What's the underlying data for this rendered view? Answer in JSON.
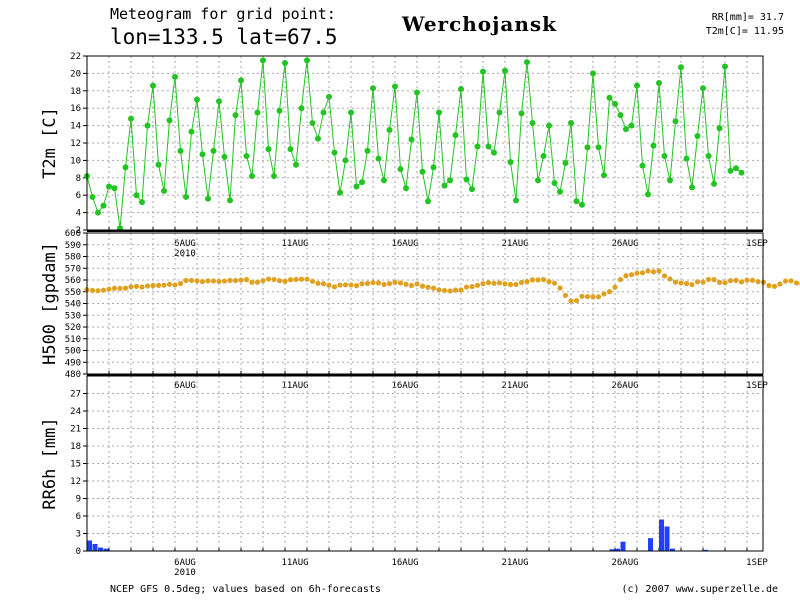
{
  "header": {
    "line1": "Meteogram for grid point:",
    "line2": "lon=133.5  lat=67.5",
    "station": "Werchojansk",
    "stat_rr": "RR[mm]= 31.7",
    "stat_t2m": "T2m[C]= 11.95"
  },
  "footer": {
    "source": "NCEP GFS 0.5deg; values based on 6h-forecasts",
    "copyright": "(c) 2007 www.superzelle.de"
  },
  "colors": {
    "t2m": "#22c422",
    "h500": "#e0a020",
    "rr6h": "#2040ff",
    "grid": "#aaaaaa"
  },
  "chart_data": [
    {
      "type": "line",
      "ylabel": "T2m [C]",
      "x_unit": "6h steps from 1 Aug 2010 00UTC",
      "ylim": [
        2,
        22
      ],
      "yticks": [
        2,
        4,
        6,
        8,
        10,
        12,
        14,
        16,
        18,
        20,
        22
      ],
      "grid": true,
      "date_ticks": [
        "6AUG",
        "11AUG",
        "16AUG",
        "21AUG",
        "26AUG",
        "1SEP"
      ],
      "year_label": "2010",
      "values": [
        8.2,
        5.8,
        4.0,
        4.8,
        7.0,
        6.8,
        2.2,
        9.2,
        14.8,
        6.0,
        5.2,
        14.0,
        18.6,
        9.5,
        6.5,
        14.6,
        19.6,
        11.1,
        5.8,
        13.3,
        17.0,
        10.7,
        5.6,
        11.1,
        16.8,
        10.4,
        5.4,
        15.2,
        19.2,
        10.5,
        8.2,
        15.5,
        21.5,
        11.3,
        8.2,
        15.7,
        21.2,
        11.3,
        9.5,
        16.0,
        21.5,
        14.3,
        12.5,
        15.5,
        17.3,
        10.9,
        6.3,
        10.0,
        15.5,
        7.0,
        7.5,
        11.1,
        18.3,
        10.2,
        7.7,
        13.5,
        18.5,
        9.0,
        6.8,
        12.4,
        17.8,
        8.7,
        5.3,
        9.2,
        15.5,
        7.1,
        7.7,
        12.9,
        18.2,
        7.8,
        6.7,
        11.6,
        20.2,
        11.6,
        10.9,
        15.5,
        20.3,
        9.8,
        5.4,
        15.4,
        21.3,
        14.3,
        7.7,
        10.5,
        14.0,
        7.4,
        6.4,
        9.7,
        14.3,
        5.3,
        4.9,
        11.5,
        20.0,
        11.5,
        8.3,
        17.2,
        16.5,
        15.2,
        13.6,
        14.0,
        18.6,
        9.4,
        6.1,
        11.7,
        18.9,
        10.5,
        7.7,
        14.5,
        20.7,
        10.2,
        6.9,
        12.8,
        18.3,
        10.5,
        7.3,
        13.7,
        20.8,
        8.8,
        9.1,
        8.6
      ]
    },
    {
      "type": "line",
      "ylabel": "H500 [gpdam]",
      "ylim": [
        480,
        600
      ],
      "yticks": [
        480,
        490,
        500,
        510,
        520,
        530,
        540,
        550,
        560,
        570,
        580,
        590,
        600
      ],
      "grid": true,
      "date_ticks": [
        "6AUG",
        "11AUG",
        "16AUG",
        "21AUG",
        "26AUG",
        "1SEP"
      ],
      "year_label": "2010",
      "values": [
        551.8,
        551.1,
        550.9,
        551.3,
        552.3,
        553.0,
        552.8,
        553.1,
        554.2,
        554.6,
        554.0,
        554.9,
        555.3,
        555.4,
        555.6,
        556.4,
        555.8,
        557.0,
        559.6,
        559.6,
        559.3,
        558.7,
        559.3,
        559.2,
        558.8,
        559.1,
        559.6,
        559.5,
        559.9,
        560.3,
        558.1,
        558.2,
        559.4,
        560.8,
        560.5,
        559.4,
        558.9,
        560.2,
        560.5,
        560.7,
        560.7,
        558.9,
        557.2,
        556.8,
        555.6,
        554.2,
        555.7,
        555.9,
        555.8,
        555.2,
        556.8,
        557.1,
        557.7,
        557.5,
        556.2,
        556.9,
        557.9,
        557.5,
        556.4,
        555.3,
        556.6,
        554.8,
        553.8,
        553.1,
        551.6,
        551.1,
        550.7,
        551.4,
        551.5,
        554.0,
        554.4,
        555.5,
        556.8,
        557.7,
        557.2,
        557.5,
        556.7,
        556.2,
        556.2,
        557.9,
        558.6,
        560.1,
        560.1,
        560.3,
        558.6,
        557.3,
        553.2,
        546.9,
        542.2,
        542.5,
        546.1,
        545.9,
        545.7,
        545.7,
        548.2,
        550.1,
        553.9,
        560.4,
        563.6,
        564.5,
        565.8,
        566.1,
        567.6,
        566.9,
        567.7,
        563.5,
        560.9,
        558.2,
        557.5,
        557.0,
        556.1,
        558.5,
        558.3,
        560.5,
        560.3,
        558.0,
        557.6,
        559.4,
        559.7,
        558.4,
        559.9,
        559.8,
        558.6,
        558.1,
        555.2,
        554.6,
        556.6,
        559.1,
        559.3,
        557.5,
        556.3,
        555.1,
        552.4,
        551.7,
        549.3,
        549.8
      ]
    },
    {
      "type": "bar",
      "ylabel": "RR6h [mm]",
      "ylim": [
        0,
        30
      ],
      "yticks": [
        0,
        3,
        6,
        9,
        12,
        15,
        18,
        21,
        24,
        27
      ],
      "grid": true,
      "date_ticks": [
        "6AUG",
        "11AUG",
        "16AUG",
        "21AUG",
        "26AUG",
        "1SEP"
      ],
      "year_label": "2010",
      "values": [
        1.8,
        1.2,
        0.6,
        0.4,
        0,
        0,
        0,
        0,
        0,
        0,
        0,
        0,
        0,
        0,
        0,
        0,
        0,
        0,
        0,
        0,
        0,
        0,
        0,
        0,
        0,
        0,
        0,
        0,
        0,
        0,
        0,
        0,
        0,
        0,
        0,
        0,
        0,
        0,
        0,
        0,
        0,
        0,
        0,
        0,
        0,
        0,
        0,
        0,
        0,
        0,
        0,
        0,
        0,
        0,
        0,
        0,
        0,
        0,
        0,
        0,
        0,
        0,
        0,
        0,
        0,
        0,
        0,
        0,
        0,
        0,
        0,
        0,
        0,
        0,
        0,
        0,
        0,
        0,
        0,
        0,
        0,
        0,
        0,
        0,
        0,
        0,
        0,
        0,
        0,
        0,
        0,
        0,
        0,
        0,
        0,
        0.3,
        0.4,
        1.6,
        0,
        0,
        0,
        0,
        2.2,
        0,
        5.4,
        4.2,
        0.4,
        0,
        0,
        0,
        0,
        0,
        0.2,
        0,
        0,
        0,
        0,
        0,
        0,
        0,
        0,
        0,
        0,
        0,
        0,
        0,
        0,
        0,
        0,
        0,
        0,
        0,
        0,
        0,
        0,
        0,
        0,
        0,
        0,
        4.4,
        0,
        0,
        0,
        0,
        0,
        0,
        0,
        0.3,
        0,
        0,
        0,
        0,
        0,
        0,
        0,
        0,
        0,
        0,
        0,
        0,
        0,
        0,
        2.0,
        0,
        0,
        0,
        0,
        0,
        0,
        0,
        0.8,
        0,
        0,
        0,
        0,
        0,
        0,
        0,
        0,
        0,
        0,
        0,
        0,
        0,
        0,
        0,
        0,
        2.0,
        0,
        0,
        2.0,
        0,
        0,
        0,
        0,
        0,
        0,
        0,
        0,
        0,
        0,
        0,
        0,
        0,
        0,
        0,
        0,
        0,
        0,
        0,
        0,
        0,
        0,
        0,
        0,
        0,
        0,
        0,
        0,
        0,
        0,
        0,
        0,
        0,
        0,
        0,
        0,
        0,
        0,
        0,
        0,
        0,
        0,
        0,
        0,
        0,
        0,
        0,
        0,
        0,
        0,
        0,
        0,
        0,
        0,
        0,
        0,
        0,
        0,
        0,
        0,
        0,
        0,
        0,
        0,
        0,
        0,
        3.3,
        0.6
      ]
    }
  ]
}
